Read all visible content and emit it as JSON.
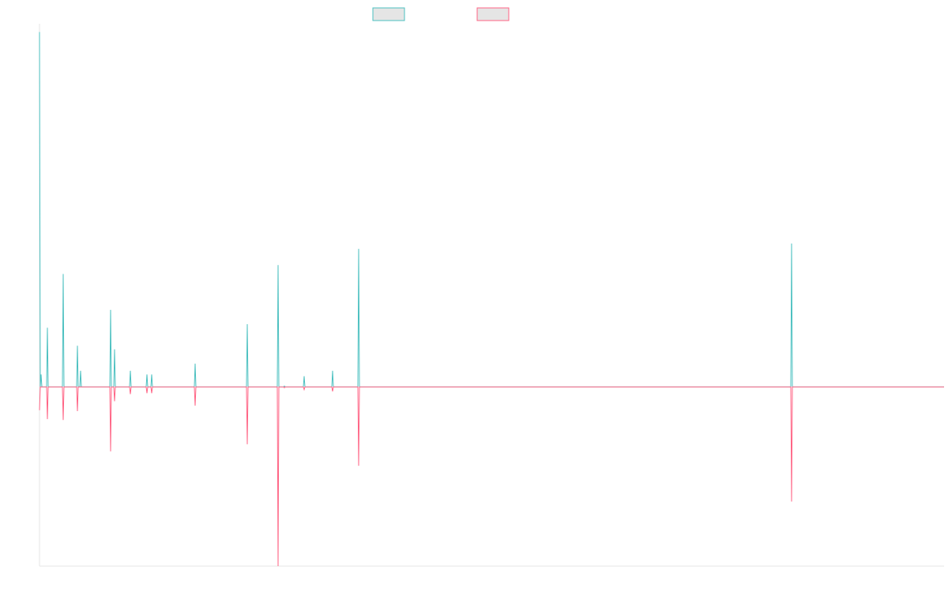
{
  "chart_data": {
    "type": "line",
    "title": "",
    "xlabel": "",
    "ylabel": "",
    "grid": false,
    "legend_position": "top-center",
    "ylim": [
      -100,
      200
    ],
    "x": [
      0,
      1,
      2,
      3,
      4,
      5,
      6,
      7,
      8,
      9,
      10,
      11,
      12,
      13,
      14,
      15,
      16,
      17,
      18,
      19,
      20,
      21,
      22,
      23,
      24,
      25,
      26,
      27,
      28,
      29,
      30,
      31,
      32,
      33,
      34,
      35,
      36,
      37,
      38,
      39,
      40,
      41,
      42,
      43,
      44,
      45,
      46,
      47,
      48,
      49,
      50,
      51,
      52,
      53,
      54,
      55,
      56,
      57,
      58,
      59,
      60,
      61,
      62,
      63,
      64,
      65,
      66,
      67,
      68,
      69,
      70,
      71,
      72,
      73,
      74,
      75,
      76,
      77,
      78,
      79,
      80,
      81,
      82,
      83,
      84,
      85,
      86,
      87,
      88,
      89,
      90,
      91,
      92,
      93,
      94,
      95,
      96,
      97,
      98,
      99,
      100,
      101,
      102,
      103,
      104,
      105,
      106,
      107,
      108,
      109,
      110,
      111,
      112,
      113,
      114,
      115,
      116,
      117,
      118,
      119,
      120,
      121,
      122,
      123,
      124,
      125,
      126,
      127,
      128,
      129,
      130,
      131,
      132,
      133,
      134,
      135,
      136,
      137,
      138,
      139,
      140,
      141,
      142,
      143,
      144,
      145,
      146,
      147,
      148,
      149,
      150,
      151,
      152,
      153,
      154,
      155,
      156,
      157,
      158,
      159,
      160,
      161,
      162,
      163,
      164,
      165,
      166,
      167,
      168,
      169,
      170,
      171,
      172,
      173,
      174,
      175,
      176,
      177,
      178,
      179,
      180,
      181,
      182,
      183,
      184,
      185,
      186,
      187,
      188,
      189,
      190,
      191,
      192,
      193,
      194,
      195,
      196,
      197,
      198,
      199,
      200,
      201,
      202,
      203,
      204,
      205,
      206,
      207,
      208,
      209,
      210,
      211,
      212,
      213,
      214,
      215,
      216,
      217,
      218,
      219,
      220,
      221,
      222,
      223,
      224,
      225,
      226,
      227,
      228,
      229,
      230,
      231,
      232,
      233,
      234,
      235,
      236,
      237,
      238,
      239,
      240,
      241,
      242,
      243,
      244,
      245,
      246,
      247,
      248,
      249,
      250,
      251,
      252,
      253,
      254,
      255,
      256,
      257,
      258,
      259,
      260,
      261,
      262,
      263,
      264,
      265,
      266,
      267,
      268,
      269,
      270,
      271,
      272,
      273,
      274,
      275,
      276,
      277,
      278,
      279,
      280,
      281,
      282,
      283,
      284,
      285,
      286,
      287,
      288,
      289,
      290,
      291,
      292,
      293,
      294,
      295,
      296,
      297,
      298,
      299,
      300,
      301,
      302,
      303,
      304,
      305,
      306,
      307,
      308,
      309,
      310,
      311,
      312,
      313,
      314,
      315,
      316,
      317,
      318,
      319,
      320,
      321,
      322,
      323,
      324,
      325,
      326,
      327,
      328,
      329,
      330,
      331,
      332,
      333,
      334,
      335,
      336,
      337,
      338,
      339,
      340,
      341,
      342,
      343,
      344,
      345,
      346,
      347,
      348,
      349,
      350,
      351,
      352,
      353,
      354,
      355,
      356,
      357,
      358,
      359,
      360,
      361,
      362,
      363,
      364,
      365,
      366,
      367,
      368,
      369,
      370,
      371,
      372,
      373,
      374,
      375,
      376,
      377,
      378,
      379,
      380,
      381,
      382,
      383,
      384,
      385,
      386,
      387,
      388,
      389,
      390,
      391,
      392,
      393,
      394,
      395,
      396,
      397,
      398,
      399,
      400,
      401,
      402,
      403,
      404,
      405,
      406,
      407,
      408,
      409,
      410,
      411,
      412,
      413,
      414,
      415,
      416,
      417,
      418,
      419,
      420,
      421,
      422,
      423,
      424,
      425,
      426,
      427,
      428,
      429,
      430,
      431,
      432,
      433,
      434,
      435,
      436,
      437,
      438,
      439,
      440,
      441,
      442,
      443,
      444,
      445,
      446,
      447,
      448,
      449,
      450,
      451,
      452,
      453,
      454,
      455,
      456,
      457,
      458,
      459,
      460,
      461,
      462,
      463,
      464,
      465,
      466,
      467,
      468,
      469,
      470,
      471,
      472,
      473,
      474,
      475,
      476,
      477,
      478,
      479,
      480,
      481,
      482,
      483,
      484,
      485,
      486,
      487,
      488,
      489,
      490,
      491,
      492,
      493,
      494,
      495,
      496,
      497,
      498,
      499,
      500,
      501,
      502,
      503,
      504,
      505,
      506,
      507,
      508,
      509,
      510,
      511,
      512,
      513,
      514,
      515,
      516,
      517,
      518,
      519,
      520,
      521,
      522,
      523,
      524,
      525,
      526,
      527,
      528,
      529,
      530,
      531,
      532,
      533,
      534,
      535,
      536,
      537,
      538,
      539,
      540,
      541,
      542,
      543,
      544,
      545,
      546,
      547,
      548,
      549,
      550,
      551,
      552,
      553,
      554,
      555,
      556,
      557,
      558,
      559,
      560,
      561,
      562,
      563,
      564,
      565,
      566,
      567,
      568,
      569,
      570,
      571,
      572,
      573,
      574,
      575,
      576,
      577,
      578,
      579,
      580,
      581,
      582,
      583,
      584,
      585,
      586,
      587,
      588,
      589,
      590,
      591,
      592,
      593,
      594,
      595,
      596,
      597,
      598,
      599,
      600,
      601,
      602,
      603,
      604,
      605,
      606,
      607,
      608,
      609,
      610,
      611,
      612,
      613,
      614,
      615,
      616,
      617,
      618,
      619,
      620,
      621,
      622,
      623,
      624,
      625,
      626,
      627,
      628,
      629,
      630,
      631,
      632,
      633,
      634,
      635,
      636,
      637,
      638,
      639,
      640,
      641,
      642,
      643,
      644,
      645,
      646,
      647,
      648,
      649,
      650,
      651,
      652,
      653,
      654,
      655,
      656,
      657,
      658,
      659,
      660,
      661,
      662,
      663,
      664,
      665,
      666,
      667,
      668,
      669,
      670,
      671,
      672,
      673,
      674,
      675,
      676,
      677,
      678,
      679,
      680,
      681,
      682,
      683,
      684,
      685,
      686,
      687,
      688,
      689,
      690,
      691,
      692,
      693,
      694,
      695,
      696,
      697,
      698,
      699,
      700,
      701,
      702,
      703,
      704,
      705,
      706,
      707,
      708,
      709,
      710,
      711,
      712,
      713,
      714,
      715,
      716,
      717,
      718,
      719,
      720,
      721,
      722,
      723,
      724,
      725,
      726,
      727,
      728,
      729,
      730,
      731,
      732,
      733,
      734,
      735,
      736,
      737,
      738,
      739,
      740,
      741,
      742,
      743,
      744,
      745,
      746,
      747,
      748,
      749,
      750,
      751,
      752,
      753,
      754,
      755,
      756,
      757,
      758,
      759,
      760,
      761,
      762,
      763,
      764,
      765,
      766,
      767,
      768,
      769,
      770,
      771,
      772,
      773,
      774,
      775,
      776,
      777,
      778,
      779,
      780,
      781,
      782,
      783,
      784,
      785,
      786,
      787,
      788,
      789,
      790,
      791,
      792,
      793,
      794,
      795,
      796,
      797,
      798,
      799,
      800,
      801,
      802,
      803,
      804,
      805,
      806,
      807,
      808,
      809,
      810,
      811,
      812,
      813,
      814,
      815,
      816,
      817,
      818,
      819,
      820,
      821,
      822,
      823,
      824,
      825,
      826,
      827,
      828,
      829,
      830,
      831,
      832,
      833,
      834,
      835,
      836,
      837,
      838,
      839,
      840,
      841,
      842,
      843,
      844,
      845,
      846,
      847,
      848,
      849,
      850,
      851,
      852,
      853,
      854,
      855,
      856,
      857,
      858,
      859,
      860,
      861,
      862,
      863,
      864,
      865,
      866,
      867,
      868,
      869,
      870,
      871,
      872,
      873,
      874,
      875,
      876,
      877,
      878,
      879,
      880,
      881,
      882,
      883,
      884,
      885,
      886,
      887,
      888,
      889,
      890,
      891,
      892,
      893,
      894,
      895,
      896,
      897,
      898,
      899,
      900,
      901,
      902,
      903,
      904,
      905,
      906,
      907,
      908,
      909,
      910,
      911,
      912,
      913,
      914,
      915,
      916,
      917,
      918,
      919,
      920,
      921,
      922,
      923,
      924,
      925,
      926,
      927,
      928,
      929,
      930,
      931,
      932,
      933,
      934,
      935,
      936,
      937,
      938,
      939,
      940,
      941,
      942,
      943,
      944,
      945,
      946,
      947,
      948,
      949,
      950,
      951,
      952,
      953,
      954,
      955,
      956,
      957,
      958,
      959,
      960,
      961,
      962,
      963,
      964,
      965,
      966,
      967,
      968,
      969,
      970,
      971,
      972,
      973,
      974,
      975,
      976,
      977,
      978,
      979,
      980,
      981,
      982,
      983,
      984,
      985,
      986,
      987,
      988,
      989,
      990,
      991,
      992,
      993,
      994,
      995,
      996,
      997,
      998,
      999,
      1000,
      1001,
      1002,
      1003,
      1004,
      1005,
      1006,
      1007,
      1008,
      1009,
      1010,
      1011,
      1012,
      1013,
      1014,
      1015,
      1016,
      1017,
      1018,
      1019,
      1020,
      1021,
      1022,
      1023,
      1024,
      1025,
      1026,
      1027,
      1028,
      1029,
      1030,
      1031,
      1032,
      1033,
      1034,
      1035,
      1036,
      1037,
      1038,
      1039,
      1040,
      1041,
      1042,
      1043,
      1044,
      1045,
      1046,
      1047,
      1048,
      1049,
      1050,
      1051,
      1052,
      1053,
      1054,
      1055,
      1056,
      1057,
      1058,
      1059,
      1060,
      1061,
      1062,
      1063,
      1064,
      1065,
      1066,
      1067,
      1068,
      1069,
      1070,
      1071,
      1072,
      1073,
      1074,
      1075,
      1076,
      1077,
      1078,
      1079,
      1080,
      1081,
      1082,
      1083,
      1084,
      1085,
      1086,
      1087,
      1088,
      1089,
      1090,
      1091,
      1092,
      1093,
      1094,
      1095,
      1096,
      1097,
      1098,
      1099,
      1100,
      1101,
      1102,
      1103,
      1104,
      1105,
      1106,
      1107,
      1108,
      1109,
      1110,
      1111,
      1112,
      1113,
      1114,
      1115,
      1116,
      1117,
      1118,
      1119,
      1120,
      1121,
      1122,
      1123,
      1124,
      1125,
      1126,
      1127,
      1128,
      1129,
      1130,
      1131,
      1132,
      1133,
      1134,
      1135,
      1136,
      1137,
      1138,
      1139,
      1140,
      1141,
      1142,
      1143,
      1144,
      1145
    ],
    "series": [
      {
        "color": "#4bc0c0",
        "spikes": [
          [
            0,
            198
          ],
          [
            2,
            7
          ],
          [
            10,
            33
          ],
          [
            30,
            63
          ],
          [
            48,
            23
          ],
          [
            52,
            9
          ],
          [
            90,
            43
          ],
          [
            95,
            21
          ],
          [
            115,
            9
          ],
          [
            136,
            7
          ],
          [
            142,
            7
          ],
          [
            197,
            13
          ],
          [
            263,
            35
          ],
          [
            302,
            68
          ],
          [
            310,
            0.5
          ],
          [
            335,
            6
          ],
          [
            371,
            9
          ],
          [
            404,
            77
          ],
          [
            952,
            80
          ]
        ]
      },
      {
        "color": "#ff6384",
        "spikes": [
          [
            0,
            -13
          ],
          [
            10,
            -18
          ],
          [
            30,
            -18.5
          ],
          [
            48,
            -13.5
          ],
          [
            90,
            -36
          ],
          [
            95,
            -8
          ],
          [
            115,
            -4
          ],
          [
            136,
            -3.5
          ],
          [
            142,
            -3.5
          ],
          [
            197,
            -10.5
          ],
          [
            263,
            -32
          ],
          [
            302,
            -100
          ],
          [
            310,
            -0.5
          ],
          [
            335,
            -1.5
          ],
          [
            371,
            -2.5
          ],
          [
            404,
            -44
          ],
          [
            952,
            -64
          ]
        ]
      }
    ]
  }
}
